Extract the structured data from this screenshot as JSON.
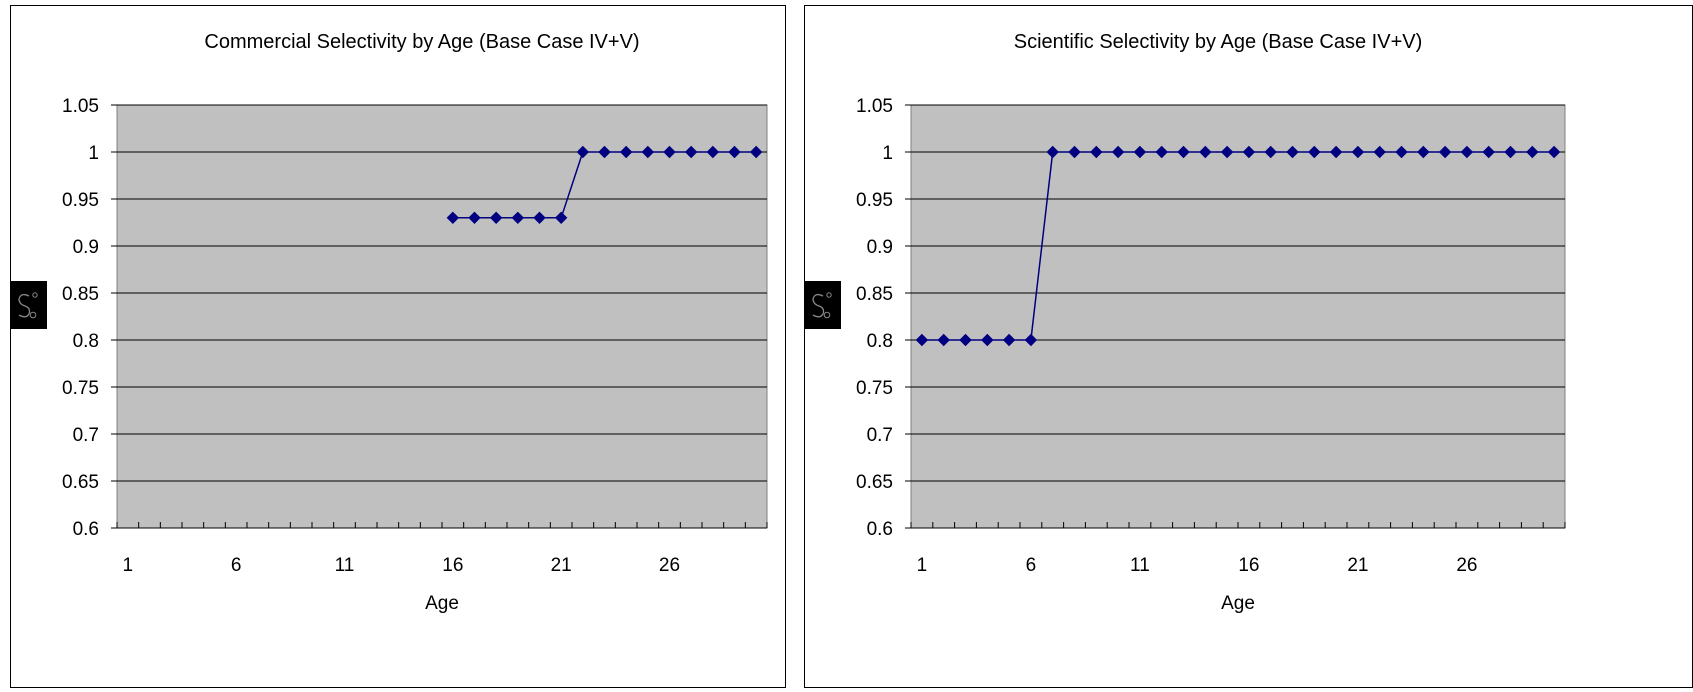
{
  "chart_data": [
    {
      "type": "line",
      "title": "Commercial Selectivity by Age (Base Case IV+V)",
      "xlabel": "Age",
      "ylabel": "",
      "ylim": [
        0.6,
        1.05
      ],
      "xlim": [
        1,
        30
      ],
      "yticks": [
        "1.05",
        "1",
        "0.95",
        "0.9",
        "0.85",
        "0.8",
        "0.75",
        "0.7",
        "0.65",
        "0.6"
      ],
      "xticks": [
        "1",
        "6",
        "11",
        "16",
        "21",
        "26"
      ],
      "grid": true,
      "plot_background": "#c0c0c0",
      "series_color": "#000080",
      "marker": "diamond",
      "series": [
        {
          "x": [
            16,
            17,
            18,
            19,
            20,
            21,
            22,
            23,
            24,
            25,
            26,
            27,
            28,
            29,
            30
          ],
          "values": [
            0.93,
            0.93,
            0.93,
            0.93,
            0.93,
            0.93,
            1,
            1,
            1,
            1,
            1,
            1,
            1,
            1,
            1
          ]
        }
      ]
    },
    {
      "type": "line",
      "title": "Scientific Selectivity by Age (Base Case IV+V)",
      "xlabel": "Age",
      "ylabel": "",
      "ylim": [
        0.6,
        1.05
      ],
      "xlim": [
        1,
        30
      ],
      "yticks": [
        "1.05",
        "1",
        "0.95",
        "0.9",
        "0.85",
        "0.8",
        "0.75",
        "0.7",
        "0.65",
        "0.6"
      ],
      "xticks": [
        "1",
        "6",
        "11",
        "16",
        "21",
        "26"
      ],
      "grid": true,
      "plot_background": "#c0c0c0",
      "series_color": "#000080",
      "marker": "diamond",
      "series": [
        {
          "x": [
            1,
            2,
            3,
            4,
            5,
            6,
            7,
            8,
            9,
            10,
            11,
            12,
            13,
            14,
            15,
            16,
            17,
            18,
            19,
            20,
            21,
            22,
            23,
            24,
            25,
            26,
            27,
            28,
            29,
            30
          ],
          "values": [
            0.8,
            0.8,
            0.8,
            0.8,
            0.8,
            0.8,
            1,
            1,
            1,
            1,
            1,
            1,
            1,
            1,
            1,
            1,
            1,
            1,
            1,
            1,
            1,
            1,
            1,
            1,
            1,
            1,
            1,
            1,
            1,
            1
          ]
        }
      ]
    }
  ]
}
